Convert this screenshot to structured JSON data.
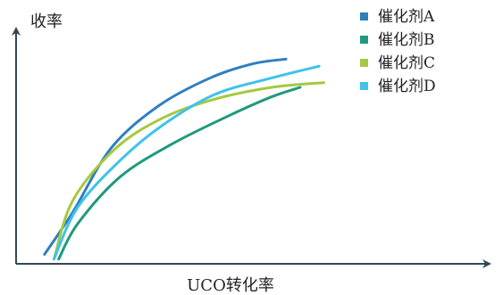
{
  "chart_data": {
    "type": "line",
    "title": "",
    "xlabel": "UCO转化率",
    "ylabel": "收率",
    "axis_ticks": "none",
    "grid": false,
    "legend_position": "top-right",
    "colors": {
      "axis": "#2f4858",
      "series_A": "#2e7fbf",
      "series_B": "#1f9a7e",
      "series_C": "#a6c840",
      "series_D": "#3fc2ec"
    },
    "series": [
      {
        "name": "催化剂A",
        "color": "#2e7fbf",
        "points": [
          [
            0.06,
            0.04
          ],
          [
            0.12,
            0.22
          ],
          [
            0.2,
            0.49
          ],
          [
            0.3,
            0.67
          ],
          [
            0.41,
            0.79
          ],
          [
            0.5,
            0.85
          ],
          [
            0.57,
            0.87
          ]
        ]
      },
      {
        "name": "催化剂B",
        "color": "#1f9a7e",
        "points": [
          [
            0.09,
            0.02
          ],
          [
            0.13,
            0.17
          ],
          [
            0.22,
            0.37
          ],
          [
            0.33,
            0.51
          ],
          [
            0.45,
            0.63
          ],
          [
            0.54,
            0.71
          ],
          [
            0.6,
            0.75
          ]
        ]
      },
      {
        "name": "催化剂C",
        "color": "#a6c840",
        "points": [
          [
            0.08,
            0.02
          ],
          [
            0.12,
            0.27
          ],
          [
            0.21,
            0.49
          ],
          [
            0.31,
            0.62
          ],
          [
            0.42,
            0.7
          ],
          [
            0.54,
            0.75
          ],
          [
            0.65,
            0.77
          ]
        ]
      },
      {
        "name": "催化剂D",
        "color": "#3fc2ec",
        "points": [
          [
            0.08,
            0.02
          ],
          [
            0.13,
            0.24
          ],
          [
            0.22,
            0.44
          ],
          [
            0.31,
            0.59
          ],
          [
            0.42,
            0.72
          ],
          [
            0.54,
            0.79
          ],
          [
            0.64,
            0.84
          ]
        ]
      }
    ]
  }
}
